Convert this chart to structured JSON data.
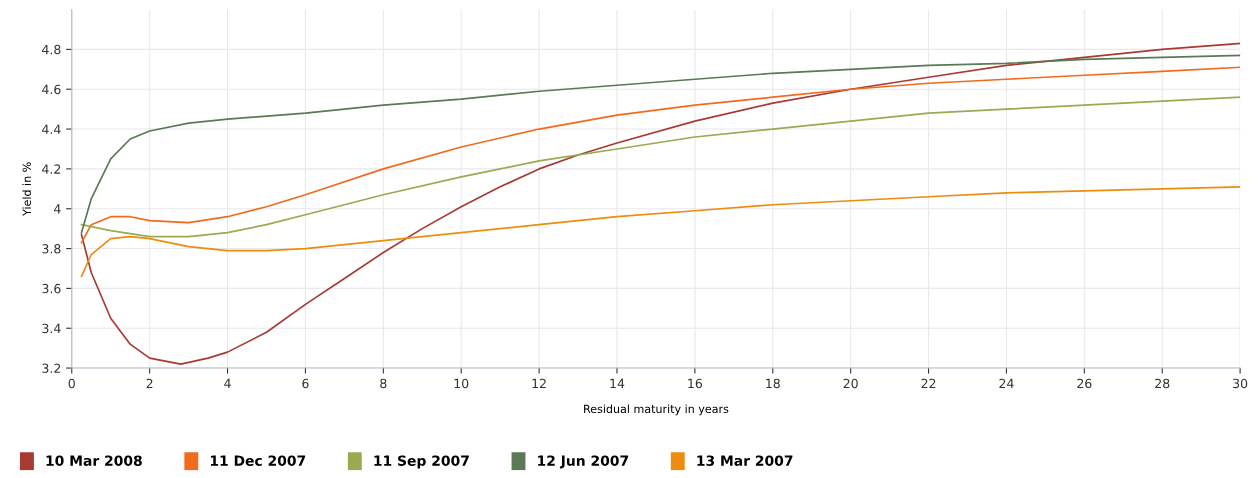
{
  "chart_data": {
    "type": "line",
    "xlabel": "Residual maturity in years",
    "ylabel": "Yield in %",
    "xlim": [
      0,
      30
    ],
    "ylim": [
      3.2,
      5.0
    ],
    "xticks": [
      0,
      2,
      4,
      6,
      8,
      10,
      12,
      14,
      16,
      18,
      20,
      22,
      24,
      26,
      28,
      30
    ],
    "yticks": [
      3.2,
      3.4,
      3.6,
      3.8,
      4,
      4.2,
      4.4,
      4.6,
      4.8
    ],
    "grid": true,
    "legend": "bottom",
    "marker": "none",
    "line_style": "solid",
    "series": [
      {
        "name": "10 Mar 2008",
        "color": "#a83a32",
        "x": [
          0.25,
          0.5,
          1,
          1.5,
          2,
          2.8,
          3.5,
          4,
          5,
          6,
          7,
          8,
          9,
          10,
          11,
          12,
          13,
          14,
          16,
          18,
          20,
          22,
          24,
          26,
          28,
          30
        ],
        "values": [
          3.87,
          3.68,
          3.45,
          3.32,
          3.25,
          3.22,
          3.25,
          3.28,
          3.38,
          3.52,
          3.65,
          3.78,
          3.9,
          4.01,
          4.11,
          4.2,
          4.27,
          4.33,
          4.44,
          4.53,
          4.6,
          4.66,
          4.72,
          4.76,
          4.8,
          4.83
        ]
      },
      {
        "name": "11 Dec 2007",
        "color": "#f26a1b",
        "x": [
          0.25,
          0.5,
          1,
          1.5,
          2,
          3,
          4,
          5,
          6,
          8,
          10,
          12,
          14,
          16,
          18,
          20,
          22,
          24,
          26,
          28,
          30
        ],
        "values": [
          3.83,
          3.92,
          3.96,
          3.96,
          3.94,
          3.93,
          3.96,
          4.01,
          4.07,
          4.2,
          4.31,
          4.4,
          4.47,
          4.52,
          4.56,
          4.6,
          4.63,
          4.65,
          4.67,
          4.69,
          4.71
        ]
      },
      {
        "name": "11 Sep 2007",
        "color": "#9aab4f",
        "x": [
          0.25,
          1,
          2,
          3,
          4,
          5,
          6,
          8,
          10,
          12,
          14,
          16,
          18,
          20,
          22,
          24,
          26,
          28,
          30
        ],
        "values": [
          3.92,
          3.89,
          3.86,
          3.86,
          3.88,
          3.92,
          3.97,
          4.07,
          4.16,
          4.24,
          4.3,
          4.36,
          4.4,
          4.44,
          4.48,
          4.5,
          4.52,
          4.54,
          4.56
        ]
      },
      {
        "name": "12 Jun 2007",
        "color": "#5a7a55",
        "x": [
          0.25,
          0.5,
          1,
          1.5,
          2,
          3,
          4,
          6,
          8,
          10,
          12,
          14,
          16,
          18,
          20,
          22,
          24,
          26,
          28,
          30
        ],
        "values": [
          3.88,
          4.05,
          4.25,
          4.35,
          4.39,
          4.43,
          4.45,
          4.48,
          4.52,
          4.55,
          4.59,
          4.62,
          4.65,
          4.68,
          4.7,
          4.72,
          4.73,
          4.75,
          4.76,
          4.77
        ]
      },
      {
        "name": "13 Mar 2007",
        "color": "#ee8c0c",
        "x": [
          0.25,
          0.5,
          1,
          1.5,
          2,
          3,
          4,
          5,
          6,
          8,
          10,
          12,
          14,
          16,
          18,
          20,
          22,
          24,
          26,
          28,
          30
        ],
        "values": [
          3.66,
          3.77,
          3.85,
          3.86,
          3.85,
          3.81,
          3.79,
          3.79,
          3.8,
          3.84,
          3.88,
          3.92,
          3.96,
          3.99,
          4.02,
          4.04,
          4.06,
          4.08,
          4.09,
          4.1,
          4.11
        ]
      }
    ]
  }
}
